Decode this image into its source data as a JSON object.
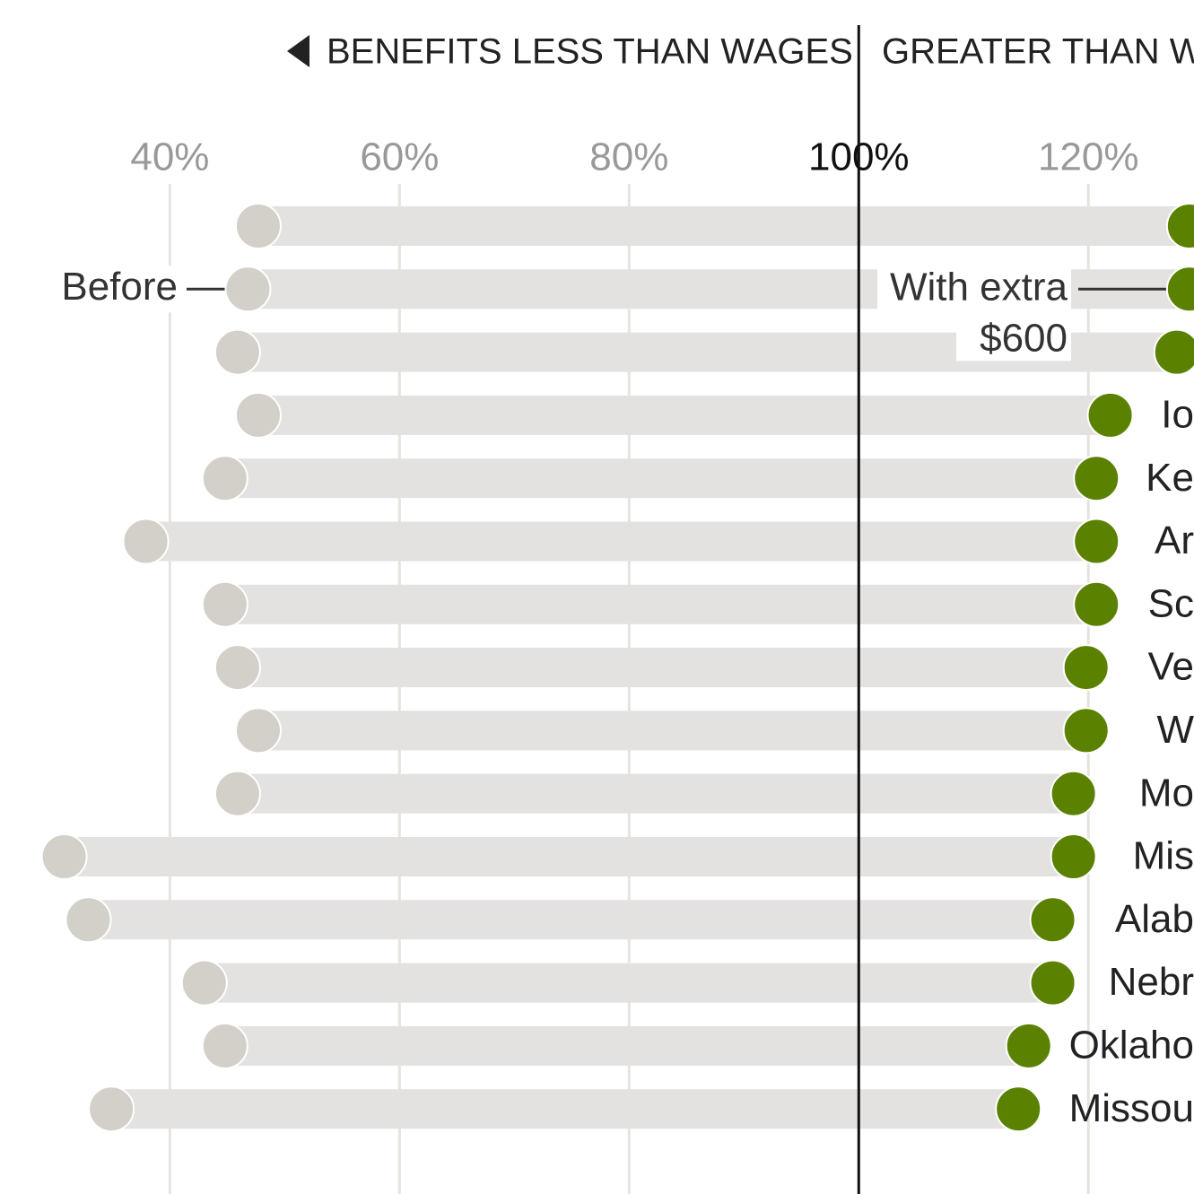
{
  "chart_data": {
    "type": "dumbbell",
    "header": {
      "left": "BENEFITS LESS THAN WAGES",
      "right": "GREATER THAN WA"
    },
    "categories": [
      null,
      null,
      null,
      "Io",
      "Ke",
      "Ar",
      "Sc",
      "Ve",
      "W",
      "Mo",
      "Mis",
      "Alab",
      "Nebr",
      "Oklaho",
      "Missou"
    ],
    "series": [
      {
        "name": "Before",
        "color": "#d3d0c9",
        "values": [
          47.7,
          46.8,
          45.9,
          47.7,
          44.8,
          37.9,
          44.8,
          45.9,
          47.7,
          45.9,
          30.8,
          32.9,
          43.0,
          44.8,
          34.9
        ]
      },
      {
        "name": "With extra $600",
        "color": "#5a8200",
        "values": [
          128.8,
          128.8,
          127.7,
          121.9,
          120.7,
          120.7,
          120.7,
          119.8,
          119.8,
          118.7,
          118.7,
          116.9,
          116.9,
          114.8,
          113.9
        ]
      }
    ],
    "xlim": [
      25.2,
      129.2
    ],
    "xticks": [
      {
        "value": 40,
        "label": "40%"
      },
      {
        "value": 60,
        "label": "60%"
      },
      {
        "value": 80,
        "label": "80%"
      },
      {
        "value": 100,
        "label": "100%"
      },
      {
        "value": 120,
        "label": "120%"
      }
    ],
    "reference": 100,
    "grid": true
  }
}
